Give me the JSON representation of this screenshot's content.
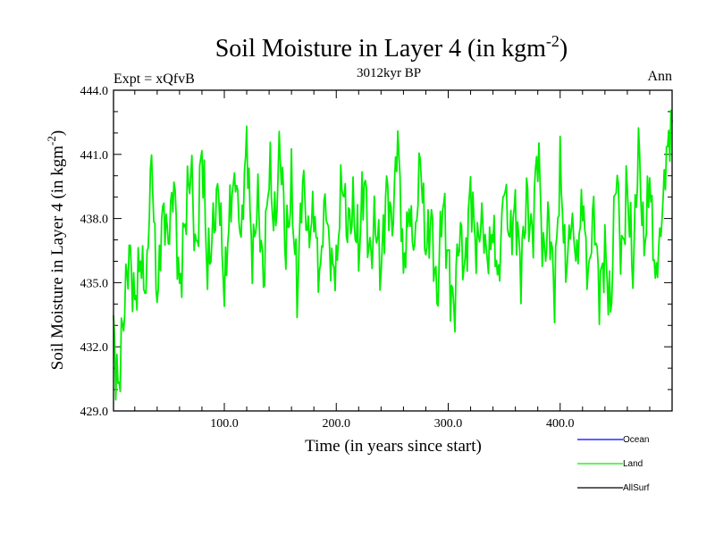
{
  "chart_data": {
    "type": "line",
    "title_main": "Soil Moisture in Layer 4 (in kgm",
    "title_sup": "-2",
    "title_close": ")",
    "subtitle": "3012kyr BP",
    "left_label": "Expt = xQfvB",
    "right_label": "Ann",
    "xlabel": "Time (in years since start)",
    "ylabel_main": "Soil Moisture in Layer 4 (in kgm",
    "ylabel_sup": "-2",
    "ylabel_close": ")",
    "xlim": [
      1,
      500
    ],
    "ylim": [
      429.0,
      444.0
    ],
    "x_ticks": [
      {
        "value": 100,
        "label": "100.0"
      },
      {
        "value": 200,
        "label": "200.0"
      },
      {
        "value": 300,
        "label": "300.0"
      },
      {
        "value": 400,
        "label": "400.0"
      }
    ],
    "y_ticks": [
      {
        "value": 429,
        "label": "429.0"
      },
      {
        "value": 432,
        "label": "432.0"
      },
      {
        "value": 435,
        "label": "435.0"
      },
      {
        "value": 438,
        "label": "438.0"
      },
      {
        "value": 441,
        "label": "441.0"
      },
      {
        "value": 444,
        "label": "444.0"
      }
    ],
    "legend_placement": "bottom-right",
    "series": [
      {
        "name": "Ocean",
        "color": "#0000ff",
        "x": [],
        "values": []
      },
      {
        "name": "Land",
        "color": "#00ee00",
        "x": [
          1,
          5,
          10,
          15,
          20,
          25,
          30,
          35,
          40,
          45,
          50,
          55,
          60,
          65,
          70,
          75,
          80,
          85,
          90,
          95,
          100,
          105,
          110,
          115,
          120,
          125,
          130,
          135,
          140,
          145,
          150,
          155,
          160,
          165,
          170,
          175,
          180,
          185,
          190,
          195,
          200,
          205,
          210,
          215,
          220,
          225,
          230,
          235,
          240,
          245,
          250,
          255,
          260,
          265,
          270,
          275,
          280,
          285,
          290,
          295,
          300,
          305,
          310,
          315,
          320,
          325,
          330,
          335,
          340,
          345,
          350,
          355,
          360,
          365,
          370,
          375,
          380,
          385,
          390,
          395,
          400,
          405,
          410,
          415,
          420,
          425,
          430,
          435,
          440,
          445,
          450,
          455,
          460,
          465,
          470,
          475,
          480,
          485,
          490,
          495,
          500
        ],
        "values": [
          432.8,
          429.8,
          433.5,
          436.5,
          434.0,
          436.2,
          434.5,
          441.0,
          434.0,
          438.5,
          437.0,
          439.8,
          434.5,
          438.0,
          440.5,
          436.0,
          441.5,
          435.5,
          437.5,
          439.5,
          434.5,
          438.5,
          440.0,
          437.0,
          441.8,
          436.0,
          439.0,
          435.0,
          440.5,
          437.5,
          441.5,
          436.5,
          439.5,
          434.5,
          440.0,
          437.0,
          438.5,
          435.0,
          439.0,
          436.0,
          435.5,
          440.0,
          437.5,
          438.5,
          436.5,
          440.0,
          436.0,
          438.0,
          435.5,
          439.5,
          437.5,
          442.0,
          435.5,
          438.5,
          436.5,
          441.0,
          436.5,
          438.0,
          434.0,
          439.0,
          436.0,
          433.5,
          437.5,
          435.5,
          439.5,
          436.5,
          438.0,
          436.0,
          437.5,
          435.0,
          439.8,
          437.0,
          438.5,
          435.5,
          439.0,
          437.0,
          441.5,
          436.0,
          438.0,
          434.5,
          440.5,
          435.5,
          438.0,
          436.0,
          439.0,
          435.0,
          438.5,
          434.5,
          436.5,
          433.5,
          440.5,
          436.0,
          439.5,
          435.5,
          441.5,
          436.5,
          440.0,
          435.0,
          437.5,
          441.0,
          442.5
        ]
      },
      {
        "name": "AllSurf",
        "color": "#000000",
        "x": [],
        "values": []
      }
    ]
  }
}
